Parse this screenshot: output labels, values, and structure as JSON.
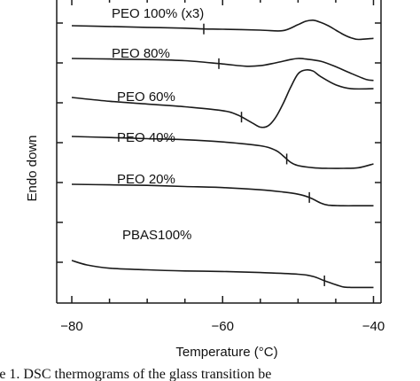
{
  "chart_data": {
    "type": "line",
    "xlabel": "Temperature (°C)",
    "ylabel": "Endo down",
    "xlim": [
      -82,
      -39
    ],
    "xticks": [
      -80,
      -60,
      -40
    ],
    "xtick_labels": [
      "−80",
      "−60",
      "−40"
    ],
    "series": [
      {
        "name": "PEO 100% (x3)",
        "x": [
          -80,
          -75,
          -70,
          -65,
          -62.5,
          -60,
          -55,
          -52,
          -50,
          -49,
          -48,
          -47,
          -46,
          -45,
          -44,
          -43,
          -42,
          -40
        ],
        "y": [
          0.94,
          0.925,
          0.91,
          0.895,
          0.88,
          0.875,
          0.86,
          0.85,
          0.96,
          1.02,
          1.04,
          1.0,
          0.94,
          0.86,
          0.78,
          0.72,
          0.69,
          0.71
        ],
        "tg_marker_x": -62.5
      },
      {
        "name": "PEO 80%",
        "x": [
          -80,
          -75,
          -70,
          -65,
          -60,
          -57,
          -55,
          -53,
          -51,
          -50,
          -49,
          -47,
          -45,
          -43,
          -41,
          -40
        ],
        "y": [
          0.6,
          0.59,
          0.58,
          0.56,
          0.5,
          0.46,
          0.47,
          0.52,
          0.58,
          0.6,
          0.59,
          0.55,
          0.45,
          0.33,
          0.22,
          0.2
        ],
        "tg_marker_x": -60.5
      },
      {
        "name": "PEO 60%",
        "x": [
          -80,
          -75,
          -70,
          -65,
          -60,
          -58,
          -56,
          -55,
          -54,
          -53,
          -52,
          -51,
          -50,
          -49,
          -48,
          -47,
          -45,
          -43,
          -40
        ],
        "y": [
          0.12,
          0.05,
          0.0,
          -0.05,
          -0.12,
          -0.2,
          -0.35,
          -0.42,
          -0.4,
          -0.25,
          0.0,
          0.3,
          0.55,
          0.62,
          0.6,
          0.5,
          0.35,
          0.28,
          0.28
        ],
        "tg_marker_x": -57.5
      },
      {
        "name": "PEO 40%",
        "x": [
          -80,
          -75,
          -70,
          -65,
          -60,
          -55,
          -53,
          -52,
          -51,
          -50,
          -48,
          -46,
          -44,
          -42,
          -40
        ],
        "y": [
          0.05,
          0.03,
          0.01,
          -0.01,
          -0.05,
          -0.12,
          -0.2,
          -0.3,
          -0.42,
          -0.48,
          -0.52,
          -0.53,
          -0.53,
          -0.52,
          -0.45
        ],
        "tg_marker_x": -51.5
      },
      {
        "name": "PEO 20%",
        "x": [
          -80,
          -75,
          -70,
          -65,
          -60,
          -55,
          -52,
          -50,
          -48.5,
          -47,
          -46,
          -44,
          -42,
          -40
        ],
        "y": [
          -0.42,
          -0.43,
          -0.44,
          -0.46,
          -0.48,
          -0.52,
          -0.56,
          -0.6,
          -0.66,
          -0.76,
          -0.8,
          -0.81,
          -0.81,
          -0.81
        ],
        "tg_marker_x": -48.5
      },
      {
        "name": "PBAS100%",
        "x": [
          -80,
          -78,
          -75,
          -70,
          -65,
          -60,
          -55,
          -50,
          -48,
          -46.5,
          -45,
          -44,
          -43,
          -42,
          -40
        ],
        "y": [
          -0.88,
          -0.96,
          -1.02,
          -1.05,
          -1.07,
          -1.08,
          -1.1,
          -1.13,
          -1.17,
          -1.25,
          -1.32,
          -1.36,
          -1.37,
          -1.37,
          -1.37
        ],
        "tg_marker_x": -46.5
      }
    ],
    "legend": "inline labels"
  },
  "caption_fragment": "re 1.  DSC thermograms of the glass transition be"
}
